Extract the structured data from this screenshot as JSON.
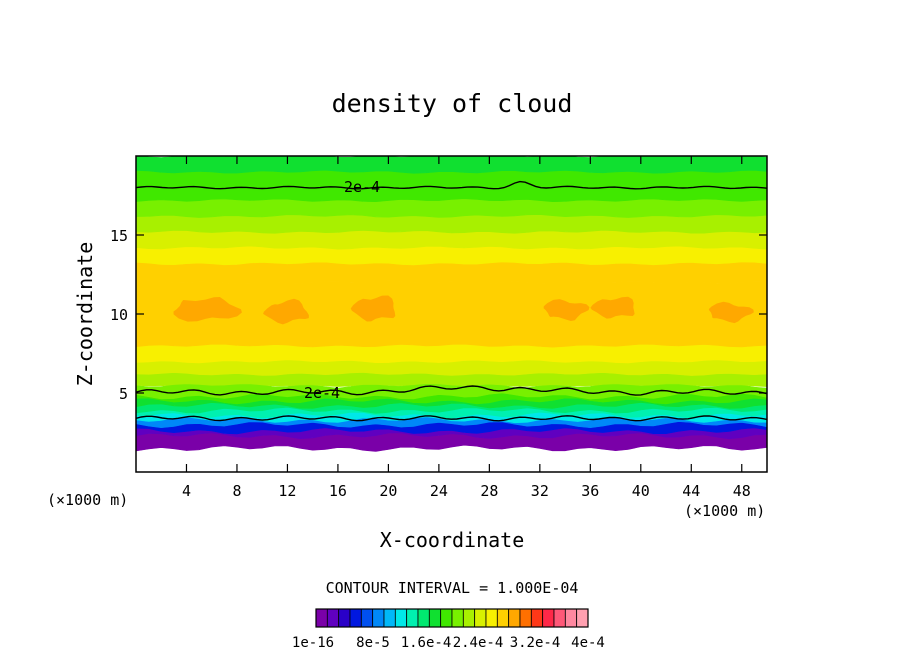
{
  "chart_data": {
    "type": "heatmap",
    "title": "density of cloud",
    "xlabel": "X-coordinate",
    "ylabel": "Z-coordinate",
    "x_unit": "(×1000 m)",
    "x_unit_right": "(×1000 m)",
    "xlim": [
      0,
      50
    ],
    "ylim": [
      0,
      20
    ],
    "xticks": [
      4,
      8,
      12,
      16,
      20,
      24,
      28,
      32,
      36,
      40,
      44,
      48
    ],
    "yticks": [
      5,
      10,
      15
    ],
    "contour_interval_text": "CONTOUR INTERVAL = 1.000E-04",
    "contour_labels": [
      "2e-4",
      "2e-4"
    ],
    "colorbar": {
      "labels": [
        "1e-16",
        "8e-5",
        "1.6e-4",
        "2.4e-4",
        "3.2e-4",
        "4e-4"
      ],
      "colors": [
        "#7a00a8",
        "#6000c0",
        "#2a00c8",
        "#0018e0",
        "#0050f0",
        "#0088f8",
        "#00b8f8",
        "#00e8e8",
        "#00f0b0",
        "#00e870",
        "#10e030",
        "#40e800",
        "#78f000",
        "#a8f000",
        "#d8f000",
        "#f8f000",
        "#ffd000",
        "#ffa800",
        "#ff7000",
        "#ff3818",
        "#ff2848",
        "#ff5878",
        "#ff88a0",
        "#ffa0b0"
      ]
    },
    "profile": {
      "z": [
        1.5,
        2.3,
        2.6,
        3.0,
        3.3,
        3.6,
        3.9,
        4.2,
        4.5,
        4.8,
        5.5,
        6.2,
        7.0,
        8.0,
        12.0,
        13.2,
        14.2,
        15.2,
        16.2,
        17.2,
        18.2,
        19.0,
        20.0
      ],
      "level": [
        0,
        1,
        3,
        5,
        7,
        8,
        9,
        10,
        11,
        12,
        13,
        14,
        15,
        16,
        16,
        15,
        14,
        13,
        12,
        11,
        11,
        10,
        10
      ]
    }
  }
}
